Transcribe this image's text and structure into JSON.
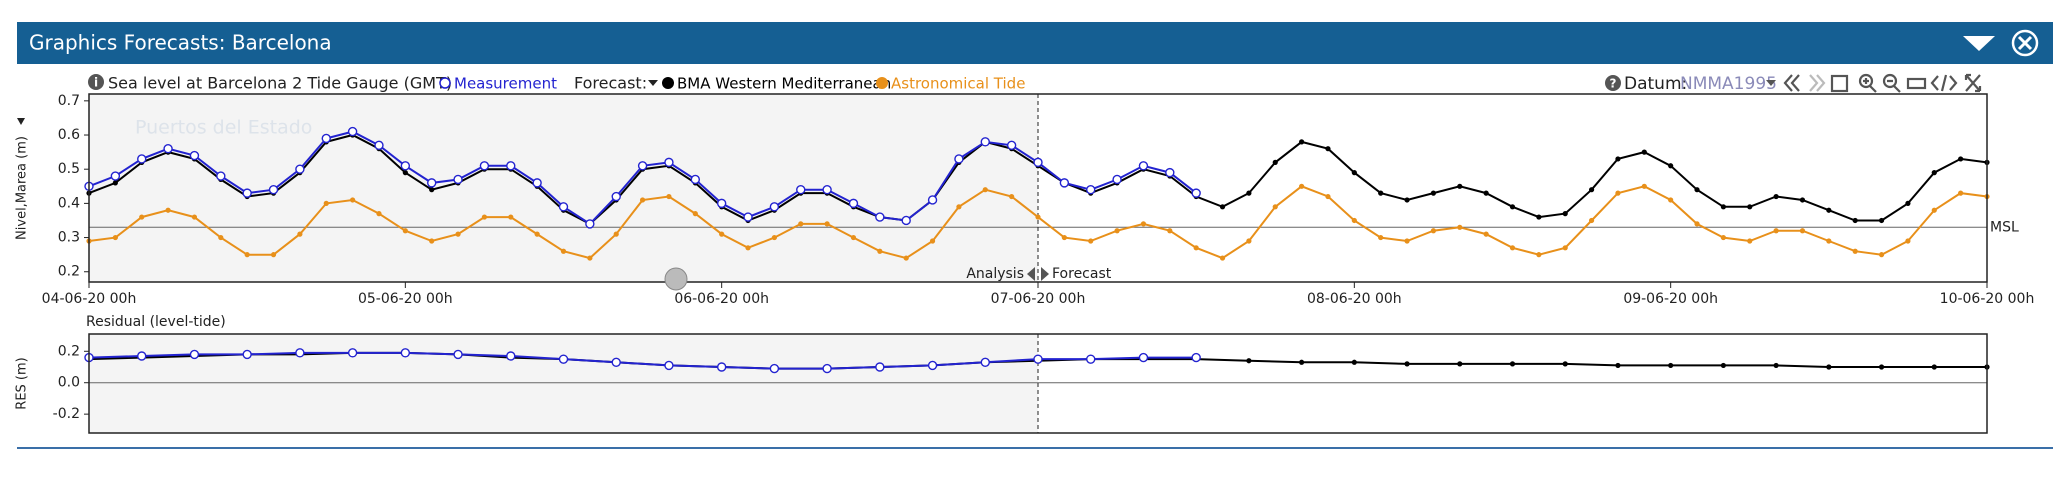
{
  "window": {
    "title": "Graphics Forecasts: Barcelona"
  },
  "toolbar": {
    "station": "Sea level at Barcelona 2 Tide Gauge (GMT)",
    "forecast_label": "Forecast:",
    "datum_label": "Datum:",
    "datum": "NMMA1995"
  },
  "chart_data": [
    {
      "type": "line",
      "watermark": "Puertos del Estado",
      "ylabel": "Nivel,Marea (m)",
      "x": [
        0,
        2,
        4,
        6,
        8,
        10,
        12,
        14,
        16,
        18,
        20,
        22,
        24,
        26,
        28,
        30,
        32,
        34,
        36,
        38,
        40,
        42,
        44,
        46,
        48,
        50,
        52,
        54,
        56,
        58,
        60,
        62,
        64,
        66,
        68,
        70,
        72,
        74,
        76,
        78,
        80,
        82,
        84,
        86,
        88,
        90,
        92,
        94,
        96,
        98,
        100,
        102,
        104,
        106,
        108,
        110,
        112,
        114,
        116,
        118,
        120,
        122,
        124,
        126,
        128,
        130,
        132,
        134,
        136,
        138,
        140,
        142,
        144
      ],
      "xlim": [
        0,
        144
      ],
      "xticks": [
        {
          "value": 0,
          "label": "04-06-20 00h"
        },
        {
          "value": 24,
          "label": "05-06-20 00h"
        },
        {
          "value": 48,
          "label": "06-06-20 00h"
        },
        {
          "value": 72,
          "label": "07-06-20 00h"
        },
        {
          "value": 96,
          "label": "08-06-20 00h"
        },
        {
          "value": 120,
          "label": "09-06-20 00h"
        },
        {
          "value": 144,
          "label": "10-06-20 00h"
        }
      ],
      "ylim": [
        0.17,
        0.72
      ],
      "yticks": [
        0.2,
        0.3,
        0.4,
        0.5,
        0.6,
        0.7
      ],
      "reference_line": {
        "value": 0.33,
        "label": "MSL"
      },
      "split": {
        "value": 72,
        "before": "Analysis",
        "after": "Forecast"
      },
      "series": [
        {
          "name": "Measurement",
          "color": "#2323d0",
          "marker": "open-circle",
          "values": [
            0.45,
            0.48,
            0.53,
            0.56,
            0.54,
            0.48,
            0.43,
            0.44,
            0.5,
            0.59,
            0.61,
            0.57,
            0.51,
            0.46,
            0.47,
            0.51,
            0.51,
            0.46,
            0.39,
            0.34,
            0.42,
            0.51,
            0.52,
            0.47,
            0.4,
            0.36,
            0.39,
            0.44,
            0.44,
            0.4,
            0.36,
            0.35,
            0.41,
            0.53,
            0.58,
            0.57,
            0.52,
            0.46,
            0.44,
            0.47,
            0.51,
            0.49,
            0.43,
            null,
            null,
            null,
            null,
            null,
            null,
            null,
            null,
            null,
            null,
            null,
            null,
            null,
            null,
            null,
            null,
            null,
            null,
            null,
            null,
            null,
            null,
            null,
            null,
            null,
            null,
            null,
            null,
            null,
            null
          ]
        },
        {
          "name": "BMA Western Mediterranean",
          "color": "#000000",
          "marker": "dot",
          "values": [
            0.43,
            0.46,
            0.52,
            0.55,
            0.53,
            0.47,
            0.42,
            0.43,
            0.49,
            0.58,
            0.6,
            0.56,
            0.49,
            0.44,
            0.46,
            0.5,
            0.5,
            0.45,
            0.38,
            0.34,
            0.41,
            0.5,
            0.51,
            0.46,
            0.39,
            0.35,
            0.38,
            0.43,
            0.43,
            0.39,
            0.36,
            0.35,
            0.41,
            0.52,
            0.58,
            0.56,
            0.51,
            0.46,
            0.43,
            0.46,
            0.5,
            0.48,
            0.42,
            0.39,
            0.43,
            0.52,
            0.58,
            0.56,
            0.49,
            0.43,
            0.41,
            0.43,
            0.45,
            0.43,
            0.39,
            0.36,
            0.37,
            0.44,
            0.53,
            0.55,
            0.51,
            0.44,
            0.39,
            0.39,
            0.42,
            0.41,
            0.38,
            0.35,
            0.35,
            0.4,
            0.49,
            0.53,
            0.52
          ]
        },
        {
          "name": "Astronomical Tide",
          "color": "#e8901a",
          "marker": "dot",
          "values": [
            0.29,
            0.3,
            0.36,
            0.38,
            0.36,
            0.3,
            0.25,
            0.25,
            0.31,
            0.4,
            0.41,
            0.37,
            0.32,
            0.29,
            0.31,
            0.36,
            0.36,
            0.31,
            0.26,
            0.24,
            0.31,
            0.41,
            0.42,
            0.37,
            0.31,
            0.27,
            0.3,
            0.34,
            0.34,
            0.3,
            0.26,
            0.24,
            0.29,
            0.39,
            0.44,
            0.42,
            0.36,
            0.3,
            0.29,
            0.32,
            0.34,
            0.32,
            0.27,
            0.24,
            0.29,
            0.39,
            0.45,
            0.42,
            0.35,
            0.3,
            0.29,
            0.32,
            0.33,
            0.31,
            0.27,
            0.25,
            0.27,
            0.35,
            0.43,
            0.45,
            0.41,
            0.34,
            0.3,
            0.29,
            0.32,
            0.32,
            0.29,
            0.26,
            0.25,
            0.29,
            0.38,
            0.43,
            0.42
          ]
        }
      ]
    },
    {
      "type": "line",
      "title": "Residual (level-tide)",
      "ylabel": "RES (m)",
      "x": [
        0,
        4,
        8,
        12,
        16,
        20,
        24,
        28,
        32,
        36,
        40,
        44,
        48,
        52,
        56,
        60,
        64,
        68,
        72,
        76,
        80,
        84,
        88,
        92,
        96,
        100,
        104,
        108,
        112,
        116,
        120,
        124,
        128,
        132,
        136,
        140,
        144
      ],
      "xlim": [
        0,
        144
      ],
      "ylim": [
        -0.32,
        0.31
      ],
      "yticks": [
        0.2,
        {
          "value": 0,
          "label": "0.0"
        },
        -0.2
      ],
      "split": {
        "value": 72
      },
      "series": [
        {
          "color": "#2323d0",
          "marker": "open-circle",
          "values": [
            0.16,
            0.17,
            0.18,
            0.18,
            0.19,
            0.19,
            0.19,
            0.18,
            0.17,
            0.15,
            0.13,
            0.11,
            0.1,
            0.09,
            0.09,
            0.1,
            0.11,
            0.13,
            0.15,
            0.15,
            0.16,
            0.16,
            null,
            null,
            null,
            null,
            null,
            null,
            null,
            null,
            null,
            null,
            null,
            null,
            null,
            null,
            null
          ]
        },
        {
          "color": "#000000",
          "marker": "dot",
          "values": [
            0.15,
            0.16,
            0.17,
            0.18,
            0.18,
            0.19,
            0.19,
            0.18,
            0.16,
            0.15,
            0.13,
            0.11,
            0.1,
            0.09,
            0.09,
            0.1,
            0.11,
            0.13,
            0.14,
            0.15,
            0.15,
            0.15,
            0.14,
            0.13,
            0.13,
            0.12,
            0.12,
            0.12,
            0.12,
            0.11,
            0.11,
            0.11,
            0.11,
            0.1,
            0.1,
            0.1,
            0.1
          ]
        }
      ]
    }
  ]
}
